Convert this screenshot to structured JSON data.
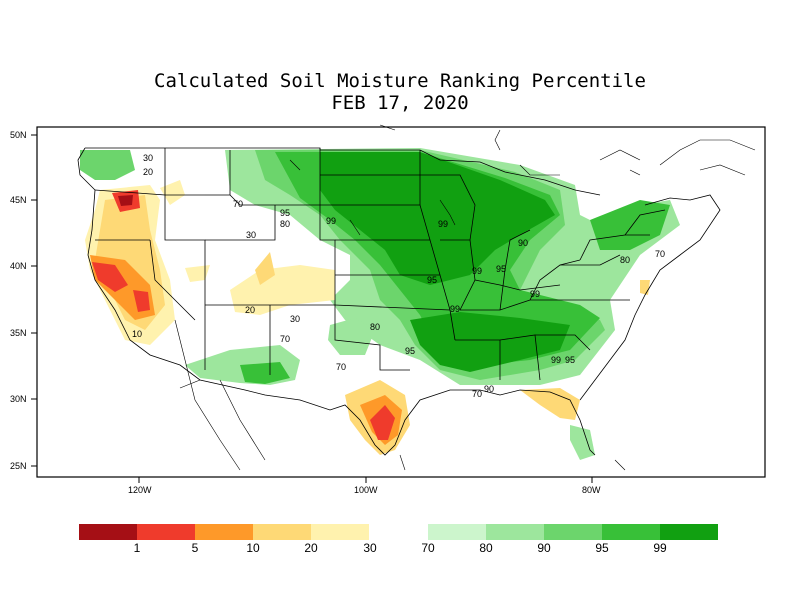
{
  "title": "Calculated Soil Moisture Ranking Percentile",
  "date": "FEB 17, 2020",
  "lat_labels": [
    "50N",
    "45N",
    "40N",
    "35N",
    "30N",
    "25N"
  ],
  "lon_labels": [
    "120W",
    "100W",
    "80W"
  ],
  "contour_labels": [
    "30",
    "20",
    "70",
    "95",
    "80",
    "99",
    "99",
    "30",
    "90",
    "95",
    "99",
    "95",
    "99",
    "80",
    "70",
    "99",
    "20",
    "30",
    "80",
    "10",
    "70",
    "95",
    "70",
    "99",
    "95",
    "90",
    "70"
  ],
  "legend": {
    "dry": [
      {
        "color": "#a50f15",
        "label": ""
      },
      {
        "color": "#ef3b2c",
        "label": "1"
      },
      {
        "color": "#fe9929",
        "label": "5"
      },
      {
        "color": "#fed976",
        "label": "10"
      },
      {
        "color": "#fff2ae",
        "label": "20"
      }
    ],
    "dry_end_label": "30",
    "wet": [
      {
        "color": "#ccf5cc",
        "label": "70"
      },
      {
        "color": "#9de69d",
        "label": "80"
      },
      {
        "color": "#6cd56c",
        "label": "90"
      },
      {
        "color": "#38c038",
        "label": "95"
      },
      {
        "color": "#11a011",
        "label": "99"
      }
    ]
  }
}
